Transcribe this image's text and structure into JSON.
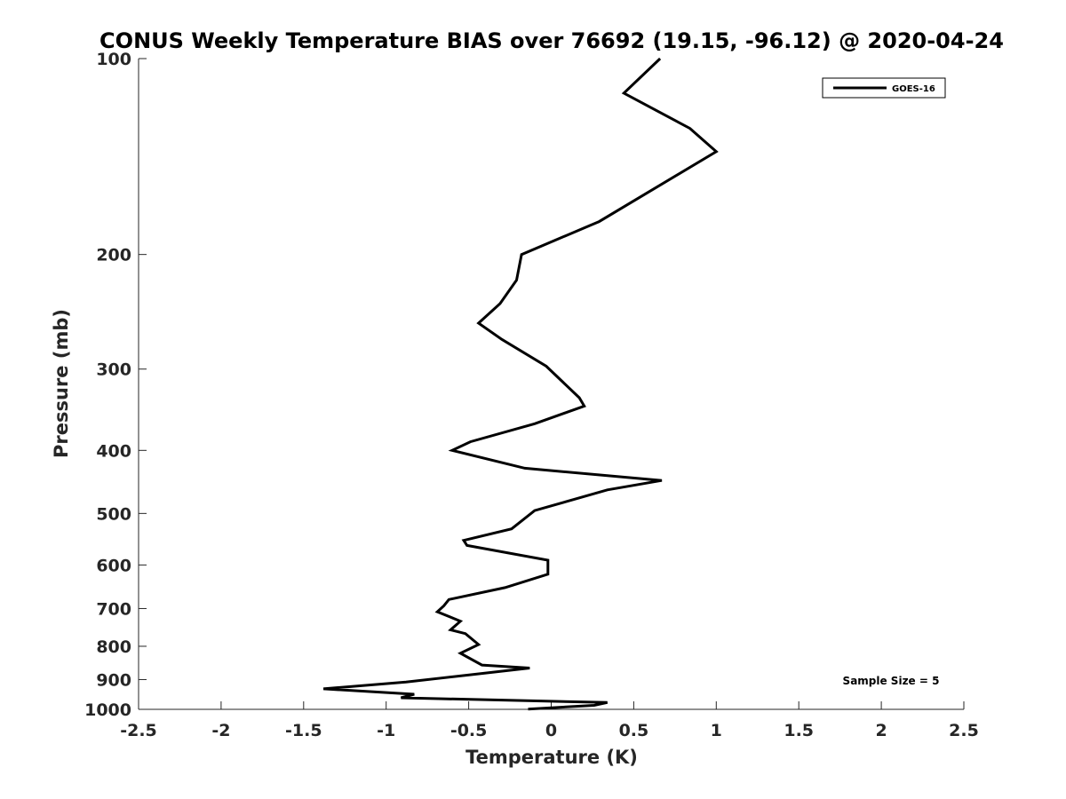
{
  "chart_data": {
    "type": "line",
    "title": "CONUS Weekly Temperature BIAS over 76692 (19.15, -96.12) @ 2020-04-24",
    "xlabel": "Temperature (K)",
    "ylabel": "Pressure (mb)",
    "xlim": [
      -2.5,
      2.5
    ],
    "ylim": [
      1000,
      100
    ],
    "yscale": "log",
    "y_reversed": true,
    "grid": false,
    "legend_position": "top-right",
    "xticks": [
      -2.5,
      -2,
      -1.5,
      -1,
      -0.5,
      0,
      0.5,
      1,
      1.5,
      2,
      2.5
    ],
    "xtick_labels": [
      "-2.5",
      "-2",
      "-1.5",
      "-1",
      "-0.5",
      "0",
      "0.5",
      "1",
      "1.5",
      "2",
      "2.5"
    ],
    "yticks": [
      100,
      200,
      300,
      400,
      500,
      600,
      700,
      800,
      900,
      1000
    ],
    "ytick_labels": [
      "100",
      "200",
      "300",
      "400",
      "500",
      "600",
      "700",
      "800",
      "900",
      "1000"
    ],
    "series": [
      {
        "name": "GOES-16",
        "color": "#000000",
        "x": [
          0.66,
          0.44,
          0.84,
          1.0,
          0.29,
          -0.18,
          -0.21,
          -0.31,
          -0.44,
          -0.3,
          -0.03,
          0.17,
          0.2,
          -0.1,
          -0.49,
          -0.6,
          -0.16,
          0.67,
          0.34,
          -0.1,
          -0.24,
          -0.53,
          -0.51,
          -0.02,
          -0.02,
          -0.28,
          -0.62,
          -0.65,
          -0.69,
          -0.55,
          -0.61,
          -0.52,
          -0.44,
          -0.55,
          -0.42,
          -0.13,
          -0.88,
          -1.38,
          -0.83,
          -0.91,
          0.34,
          0.26,
          -0.14
        ],
        "y": [
          100,
          113,
          128,
          139,
          178,
          200,
          219,
          238,
          255,
          270,
          297,
          332,
          342,
          364,
          388,
          400,
          426,
          445,
          460,
          495,
          528,
          550,
          560,
          590,
          620,
          650,
          678,
          693,
          708,
          732,
          755,
          765,
          795,
          820,
          855,
          864,
          908,
          930,
          948,
          960,
          976,
          986,
          999
        ]
      }
    ],
    "annotations": [
      "Sample Size = 5"
    ]
  }
}
